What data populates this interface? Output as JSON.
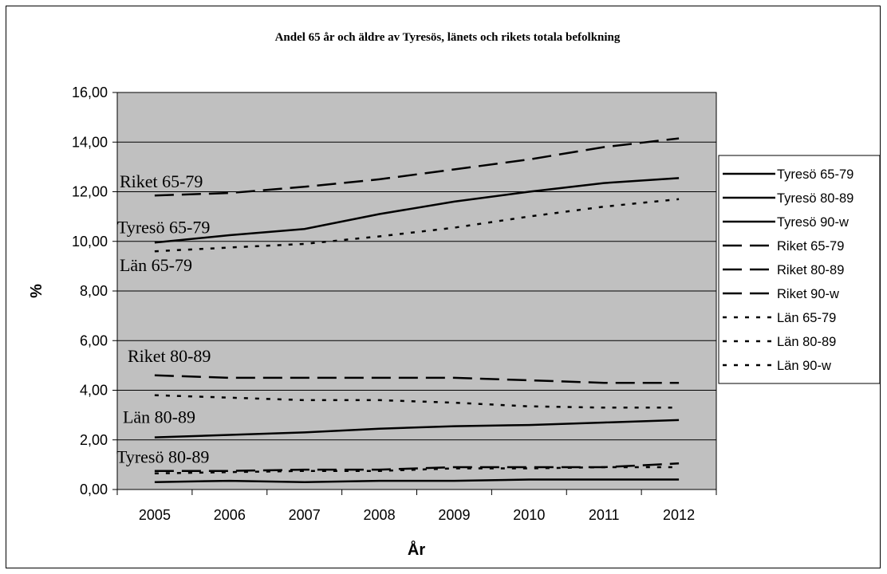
{
  "chart_data": {
    "type": "line",
    "title": "Andel 65 år och äldre av Tyresös, länets och rikets totala befolkning",
    "xlabel": "År",
    "ylabel": "%",
    "ylim": [
      0,
      16
    ],
    "ytick_step": 2,
    "grid": "horizontal",
    "legend_position": "right",
    "plot_background": "#c0c0c0",
    "categories": [
      "2005",
      "2006",
      "2007",
      "2008",
      "2009",
      "2010",
      "2011",
      "2012"
    ],
    "series": [
      {
        "name": "Tyresö 65-79",
        "style": "solid",
        "values": [
          9.95,
          10.25,
          10.5,
          11.1,
          11.6,
          12.0,
          12.35,
          12.55
        ]
      },
      {
        "name": "Tyresö 80-89",
        "style": "solid",
        "values": [
          2.1,
          2.2,
          2.3,
          2.45,
          2.55,
          2.6,
          2.7,
          2.8
        ]
      },
      {
        "name": "Tyresö 90-w",
        "style": "solid",
        "values": [
          0.3,
          0.35,
          0.3,
          0.35,
          0.35,
          0.4,
          0.4,
          0.4
        ]
      },
      {
        "name": "Riket 65-79",
        "style": "dash",
        "values": [
          11.85,
          11.95,
          12.2,
          12.5,
          12.9,
          13.3,
          13.8,
          14.15
        ]
      },
      {
        "name": "Riket 80-89",
        "style": "dash",
        "values": [
          4.6,
          4.5,
          4.5,
          4.5,
          4.5,
          4.4,
          4.3,
          4.3
        ]
      },
      {
        "name": "Riket 90-w",
        "style": "dash",
        "values": [
          0.75,
          0.75,
          0.8,
          0.8,
          0.9,
          0.9,
          0.9,
          1.05
        ]
      },
      {
        "name": "Län 65-79",
        "style": "dot",
        "values": [
          9.6,
          9.75,
          9.9,
          10.2,
          10.55,
          11.0,
          11.4,
          11.7
        ]
      },
      {
        "name": "Län 80-89",
        "style": "dot",
        "values": [
          3.8,
          3.7,
          3.6,
          3.6,
          3.5,
          3.35,
          3.3,
          3.3
        ]
      },
      {
        "name": "Län 90-w",
        "style": "dot",
        "values": [
          0.65,
          0.7,
          0.75,
          0.75,
          0.85,
          0.85,
          0.9,
          0.9
        ]
      }
    ],
    "annotations": [
      {
        "text": "Riket 65-79",
        "series": "Riket 65-79"
      },
      {
        "text": "Tyresö 65-79",
        "series": "Tyresö 65-79"
      },
      {
        "text": "Län 65-79",
        "series": "Län 65-79"
      },
      {
        "text": "Riket 80-89",
        "series": "Riket 80-89"
      },
      {
        "text": "Län 80-89",
        "series": "Län 80-89"
      },
      {
        "text": "Tyresö 80-89",
        "series": "Tyresö 80-89"
      }
    ]
  }
}
